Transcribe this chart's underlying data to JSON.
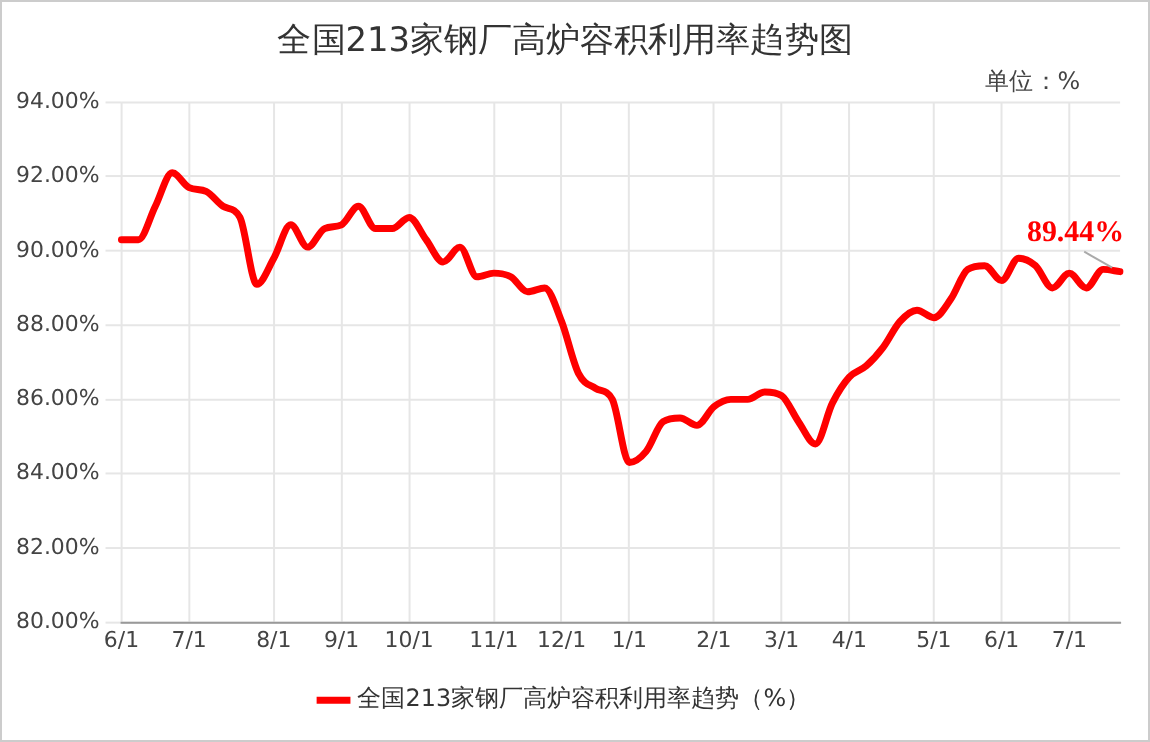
{
  "chart_data": {
    "type": "line",
    "title": "全国213家钢厂高炉容积利用率趋势图",
    "categories": [
      "6/1",
      null,
      null,
      null,
      "7/1",
      null,
      null,
      null,
      null,
      "8/1",
      null,
      null,
      null,
      "9/1",
      null,
      null,
      null,
      "10/1",
      null,
      null,
      null,
      null,
      "11/1",
      null,
      null,
      null,
      "12/1",
      null,
      null,
      null,
      "1/1",
      null,
      null,
      null,
      null,
      "2/1",
      null,
      null,
      null,
      "3/1",
      null,
      null,
      null,
      "4/1",
      null,
      null,
      null,
      null,
      "5/1",
      null,
      null,
      null,
      "6/1",
      null,
      null,
      null,
      "7/1",
      null,
      null,
      null
    ],
    "series": [
      {
        "name": "全国213家钢厂高炉容积利用率趋势（%）",
        "color": "#ff0000",
        "values": [
          90.3,
          90.3,
          91.2,
          92.1,
          91.7,
          91.6,
          91.2,
          90.9,
          89.1,
          89.8,
          90.7,
          90.1,
          90.6,
          90.7,
          91.2,
          90.6,
          90.6,
          90.9,
          90.3,
          89.7,
          90.1,
          89.3,
          89.4,
          89.3,
          88.9,
          89.0,
          88.1,
          86.7,
          86.3,
          86.0,
          84.3,
          84.6,
          85.4,
          85.5,
          85.3,
          85.8,
          86.0,
          86.0,
          86.2,
          86.1,
          85.4,
          84.8,
          85.9,
          86.6,
          86.9,
          87.4,
          88.1,
          88.4,
          88.2,
          88.7,
          89.5,
          89.6,
          89.2,
          89.8,
          89.6,
          89.0,
          89.4,
          89.0,
          89.5,
          89.44
        ]
      }
    ],
    "ylim": [
      80,
      94
    ],
    "yticks": [
      {
        "value": 80,
        "label": "80.00%"
      },
      {
        "value": 82,
        "label": "82.00%"
      },
      {
        "value": 84,
        "label": "84.00%"
      },
      {
        "value": 86,
        "label": "86.00%"
      },
      {
        "value": 88,
        "label": "88.00%"
      },
      {
        "value": 90,
        "label": "90.00%"
      },
      {
        "value": 92,
        "label": "92.00%"
      },
      {
        "value": 94,
        "label": "94.00%"
      }
    ],
    "annotations": [
      "单位：%",
      {
        "text": "89.44%",
        "y": 89.44
      }
    ],
    "grid": true,
    "legend": "bottom",
    "marker": "none",
    "line_style": "solid"
  }
}
